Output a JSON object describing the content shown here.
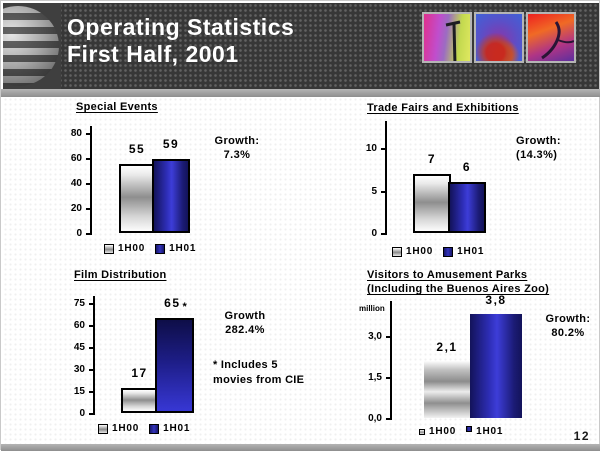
{
  "slide": {
    "title_lines": [
      "Operating Statistics",
      "First Half, 2001"
    ],
    "page_number": "12",
    "header_icons": [
      "globe-logo-icon",
      "art-thumbnail-pole",
      "art-thumbnail-flowers",
      "art-thumbnail-dancer"
    ]
  },
  "colors": {
    "header_bg": "#373737",
    "stripe_gray": "#9c9c9c",
    "bar_1h00_gray": "#8e8e8e",
    "bar_1h01_blue": "#2e2eb8",
    "title_text": "#ffffff",
    "body_text": "#000000"
  },
  "legend": {
    "series": [
      "1H00",
      "1H01"
    ]
  },
  "chart_data": [
    {
      "type": "bar",
      "title": "Special Events",
      "categories": [
        "1H00",
        "1H01"
      ],
      "values": [
        55,
        59
      ],
      "value_labels": [
        "55",
        "59"
      ],
      "ylim": [
        0,
        85
      ],
      "yticks": [
        0,
        20,
        40,
        60,
        80
      ],
      "ytick_labels": [
        "0",
        "20",
        "40",
        "60",
        "80"
      ],
      "growth_lines": [
        "Growth:",
        "7.3%"
      ],
      "legend_position": "bottom",
      "grid": false
    },
    {
      "type": "bar",
      "title": "Trade Fairs and Exhibitions",
      "categories": [
        "1H00",
        "1H01"
      ],
      "values": [
        7,
        6
      ],
      "value_labels": [
        "7",
        "6"
      ],
      "ylim": [
        0,
        13
      ],
      "yticks": [
        0,
        5,
        10
      ],
      "ytick_labels": [
        "0",
        "5",
        "10"
      ],
      "growth_lines": [
        "Growth:",
        "(14.3%)"
      ],
      "legend_position": "bottom",
      "grid": false
    },
    {
      "type": "bar",
      "title": "Film Distribution",
      "categories": [
        "1H00",
        "1H01"
      ],
      "values": [
        17,
        65
      ],
      "value_labels": [
        "17",
        "65"
      ],
      "value_suffix_series2": "*",
      "ylim": [
        0,
        80
      ],
      "yticks": [
        0,
        15,
        30,
        45,
        60,
        75
      ],
      "ytick_labels": [
        "0",
        "15",
        "30",
        "45",
        "60",
        "75"
      ],
      "growth_lines": [
        "Growth",
        "282.4%"
      ],
      "note_lines": [
        "* Includes 5",
        "movies from CIE"
      ],
      "legend_position": "bottom",
      "grid": false
    },
    {
      "type": "bar",
      "title_lines": [
        "Visitors to Amusement Parks",
        "(Including the Buenos Aires Zoo)"
      ],
      "categories": [
        "1H00",
        "1H01"
      ],
      "values": [
        2.1,
        3.8
      ],
      "value_labels": [
        "2,1",
        "3,8"
      ],
      "ylabel": "million",
      "ylim": [
        0,
        4.3
      ],
      "yticks": [
        0,
        1.5,
        3.0
      ],
      "ytick_labels": [
        "0,0",
        "1,5",
        "3,0"
      ],
      "growth_lines": [
        "Growth:",
        "80.2%"
      ],
      "legend_position": "bottom",
      "grid": false
    }
  ]
}
